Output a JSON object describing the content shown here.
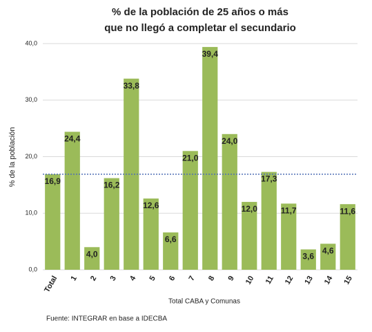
{
  "chart_data": {
    "type": "bar",
    "title": [
      "% de la población de 25 años o más",
      "que no llegó a completar el secundario"
    ],
    "y_label": "% de la población",
    "x_label": "Total CABA y Comunas",
    "source": "Fuente: INTEGRAR en base a IDECBA",
    "categories": [
      "Total",
      "1",
      "2",
      "3",
      "4",
      "5",
      "6",
      "7",
      "8",
      "9",
      "10",
      "11",
      "12",
      "13",
      "14",
      "15"
    ],
    "values": [
      16.9,
      24.4,
      4.0,
      16.2,
      33.8,
      12.6,
      6.6,
      21.0,
      39.4,
      24.0,
      12.0,
      17.3,
      11.7,
      3.6,
      4.6,
      11.6
    ],
    "value_labels": [
      "16,9",
      "24,4",
      "4,0",
      "16,2",
      "33,8",
      "12,6",
      "6,6",
      "21,0",
      "39,4",
      "24,0",
      "12,0",
      "17,3",
      "11,7",
      "3,6",
      "4,6",
      "11,6"
    ],
    "color": "#9bbb59",
    "reference_line_color": "#4f6fb5",
    "ylim": [
      0,
      40
    ],
    "yticks": [
      {
        "value": 0,
        "label": "0,0"
      },
      {
        "value": 10,
        "label": "10,0"
      },
      {
        "value": 20,
        "label": "20,0"
      },
      {
        "value": 30,
        "label": "30,0"
      },
      {
        "value": 40,
        "label": "40,0"
      }
    ],
    "grid": true
  }
}
